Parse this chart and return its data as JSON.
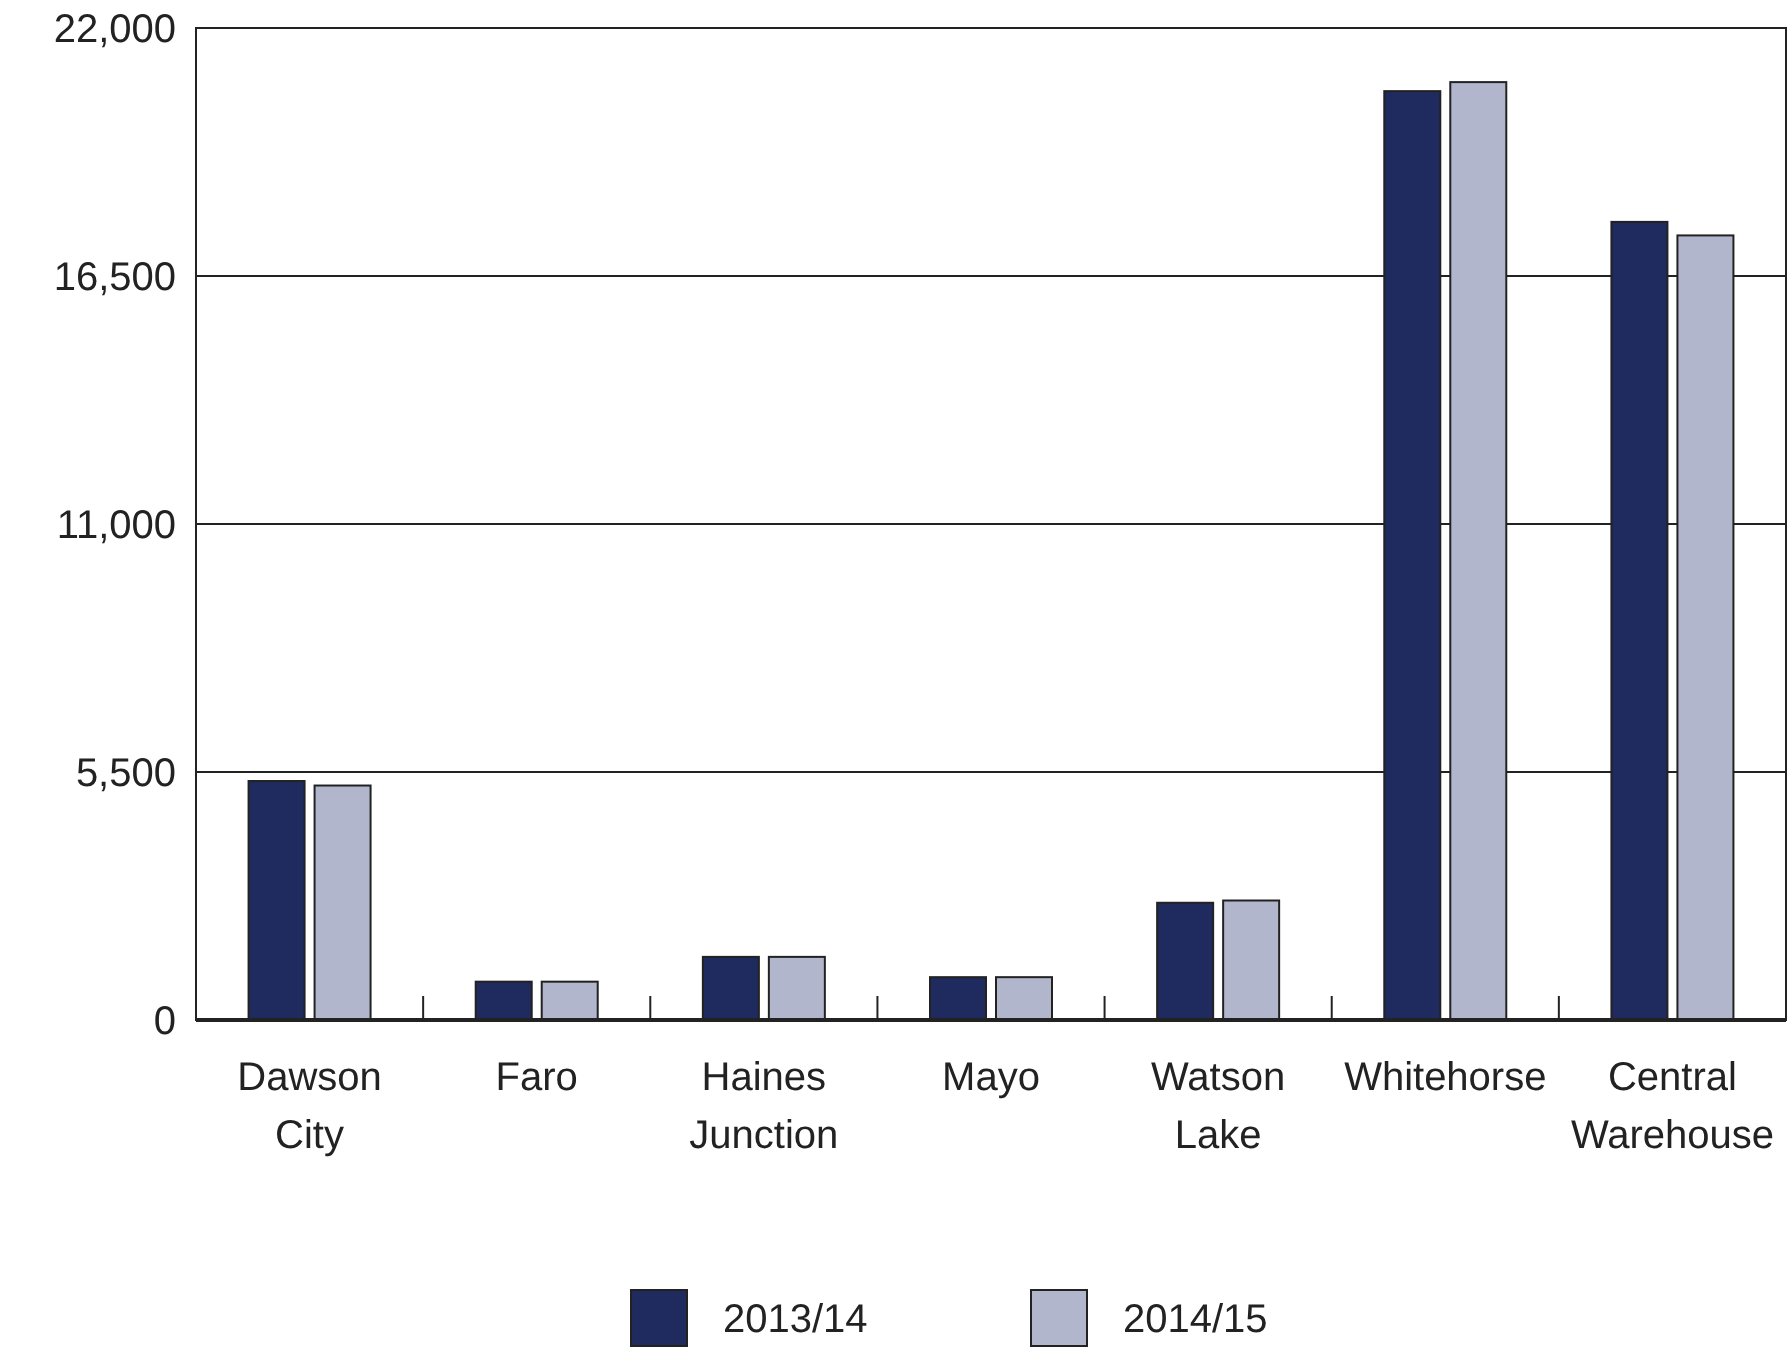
{
  "chart_data": {
    "type": "bar",
    "categories": [
      "Dawson City",
      "Faro",
      "Haines Junction",
      "Mayo",
      "Watson Lake",
      "Whitehorse",
      "Central Warehouse"
    ],
    "series": [
      {
        "name": "2013/14",
        "color": "#1f2a5e",
        "values": [
          5300,
          850,
          1400,
          950,
          2600,
          20600,
          17700
        ]
      },
      {
        "name": "2014/15",
        "color": "#b1b6cc",
        "values": [
          5200,
          850,
          1400,
          950,
          2650,
          20800,
          17400
        ]
      }
    ],
    "ylim": [
      0,
      22000
    ],
    "yticks": [
      {
        "value": 0,
        "label": "0"
      },
      {
        "value": 5500,
        "label": "5,500"
      },
      {
        "value": 11000,
        "label": "11,000"
      },
      {
        "value": 16500,
        "label": "16,500"
      },
      {
        "value": 22000,
        "label": "22,000"
      }
    ],
    "grid": "y",
    "legend": "bottom"
  }
}
